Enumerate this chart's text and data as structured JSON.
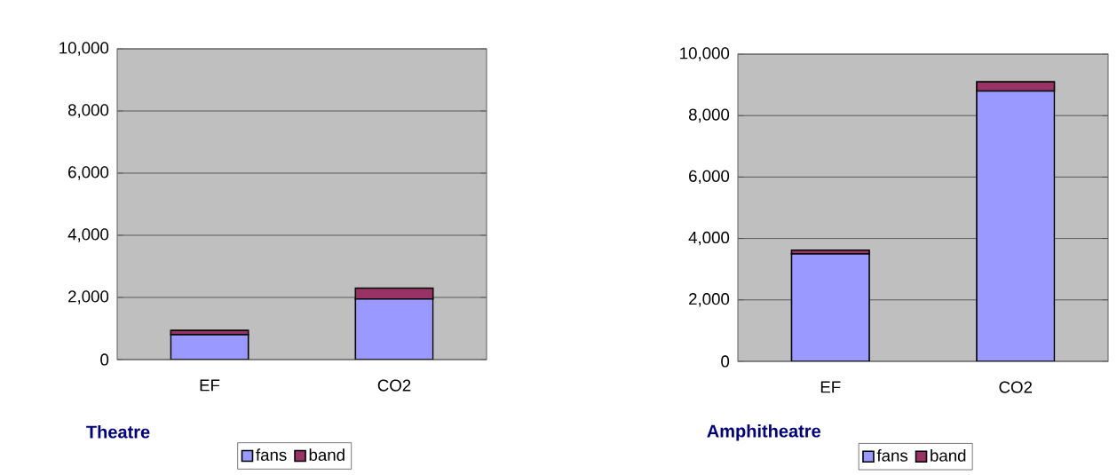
{
  "chart_data": [
    {
      "type": "bar",
      "title": "Theatre",
      "categories": [
        "EF",
        "CO2"
      ],
      "stacked": true,
      "legend": "bottom",
      "grid": "y",
      "series": [
        {
          "name": "fans",
          "color": "#9999ff",
          "values": [
            800,
            1950
          ]
        },
        {
          "name": "band",
          "color": "#993366",
          "values": [
            140,
            350
          ]
        }
      ],
      "ylim": [
        0,
        10000
      ],
      "yticks": [
        0,
        {
          "value": 2000,
          "label": "2,000"
        },
        {
          "value": 4000,
          "label": "4,000"
        },
        {
          "value": 6000,
          "label": "6,000"
        },
        {
          "value": 8000,
          "label": "8,000"
        },
        {
          "value": 10000,
          "label": "10,000"
        }
      ]
    },
    {
      "type": "bar",
      "title": "Amphitheatre",
      "categories": [
        "EF",
        "CO2"
      ],
      "stacked": true,
      "legend": "bottom",
      "grid": "y",
      "series": [
        {
          "name": "fans",
          "color": "#9999ff",
          "values": [
            3500,
            8800
          ]
        },
        {
          "name": "band",
          "color": "#993366",
          "values": [
            120,
            300
          ]
        }
      ],
      "ylim": [
        0,
        10000
      ],
      "yticks": [
        0,
        {
          "value": 2000,
          "label": "2,000"
        },
        {
          "value": 4000,
          "label": "4,000"
        },
        {
          "value": 6000,
          "label": "6,000"
        },
        {
          "value": 8000,
          "label": "8,000"
        },
        {
          "value": 10000,
          "label": "10,000"
        }
      ]
    }
  ]
}
